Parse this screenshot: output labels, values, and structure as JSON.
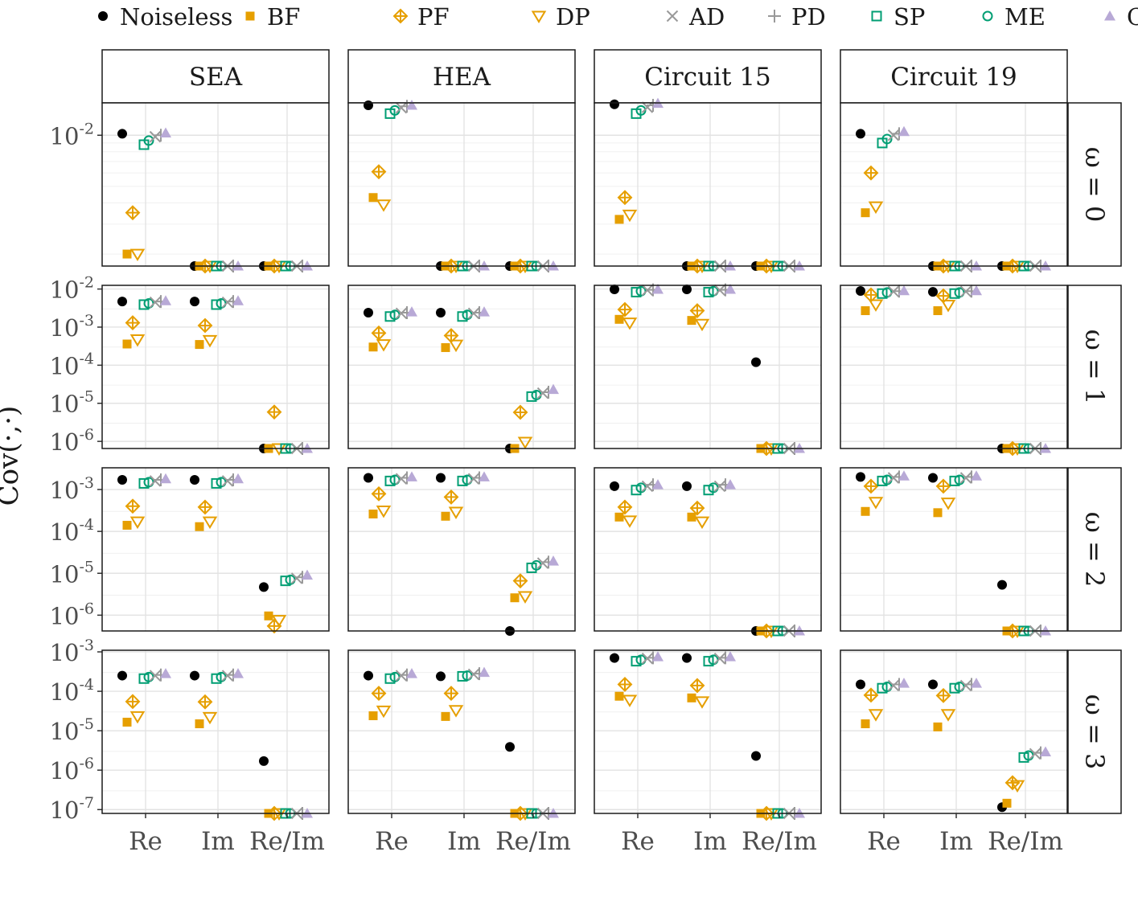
{
  "legend": {
    "placement": "top",
    "items": [
      {
        "name": "Noiseless",
        "shape": "filled-circle",
        "color": "#000000"
      },
      {
        "name": "BF",
        "shape": "filled-square",
        "color": "#E69F00"
      },
      {
        "name": "PF",
        "shape": "crossed-diamond",
        "color": "#E69F00"
      },
      {
        "name": "DP",
        "shape": "open-triangle-down",
        "color": "#E69F00"
      },
      {
        "name": "AD",
        "shape": "x",
        "color": "#999999"
      },
      {
        "name": "PD",
        "shape": "plus",
        "color": "#999999"
      },
      {
        "name": "SP",
        "shape": "open-square",
        "color": "#009E73"
      },
      {
        "name": "ME",
        "shape": "open-circle",
        "color": "#009E73"
      },
      {
        "name": "CGE",
        "shape": "filled-triangle-up",
        "color": "#B8A9D6"
      }
    ]
  },
  "chart_data": {
    "type": "scatter",
    "ylabel": "Cov(·,·)",
    "y_scale": "log",
    "grid": true,
    "columns": [
      "SEA",
      "HEA",
      "Circuit 15",
      "Circuit 19"
    ],
    "rows": [
      "ω = 0",
      "ω = 1",
      "ω = 2",
      "ω = 3"
    ],
    "x_categories": [
      "Re",
      "Im",
      "Re/Im"
    ],
    "series_order": [
      "Noiseless",
      "BF",
      "PF",
      "DP",
      "SP",
      "ME",
      "AD",
      "PD",
      "CGE"
    ],
    "row_axes": [
      {
        "ylim": [
          0.0017,
          0.0155
        ],
        "ticks": [
          {
            "v": 0.01,
            "label": "10-2"
          }
        ],
        "minor": [
          0.002,
          0.003,
          0.004,
          0.005,
          0.006,
          0.007,
          0.008,
          0.009
        ]
      },
      {
        "ylim": [
          6.5e-07,
          0.0125
        ],
        "ticks": [
          {
            "v": 0.01,
            "label": "10-2"
          },
          {
            "v": 0.001,
            "label": "10-3"
          },
          {
            "v": 0.0001,
            "label": "10-4"
          },
          {
            "v": 1e-05,
            "label": "10-5"
          },
          {
            "v": 1e-06,
            "label": "10-6"
          }
        ],
        "minor": [
          3e-06,
          3e-05,
          0.0003,
          0.003
        ]
      },
      {
        "ylim": [
          4.2e-07,
          0.0033
        ],
        "ticks": [
          {
            "v": 0.001,
            "label": "10-3"
          },
          {
            "v": 0.0001,
            "label": "10-4"
          },
          {
            "v": 1e-05,
            "label": "10-5"
          },
          {
            "v": 1e-06,
            "label": "10-6"
          }
        ],
        "minor": [
          3e-06,
          3e-05,
          0.0003,
          0.003
        ]
      },
      {
        "ylim": [
          8e-08,
          0.0011
        ],
        "ticks": [
          {
            "v": 0.001,
            "label": "10-3"
          },
          {
            "v": 0.0001,
            "label": "10-4"
          },
          {
            "v": 1e-05,
            "label": "10-5"
          },
          {
            "v": 1e-06,
            "label": "10-6"
          },
          {
            "v": 1e-07,
            "label": "10-7"
          }
        ],
        "minor": [
          3e-07,
          3e-06,
          3e-05,
          0.0003
        ]
      }
    ],
    "panels": [
      [
        {
          "Re": {
            "Noiseless": 0.0102,
            "BF": 0.002,
            "PF": 0.0035,
            "DP": 0.002,
            "SP": 0.0088,
            "ME": 0.0093,
            "AD": 0.0098,
            "PD": 0.01,
            "CGE": 0.0103
          },
          "Im": {
            "all": 0.0017
          },
          "Re/Im": {
            "all": 0.0017
          }
        },
        {
          "Re": {
            "Noiseless": 0.015,
            "BF": 0.0043,
            "PF": 0.0061,
            "DP": 0.0039,
            "SP": 0.0134,
            "ME": 0.014,
            "AD": 0.0145,
            "PD": 0.0148,
            "CGE": 0.015
          },
          "Im": {
            "all": 0.0017
          },
          "Re/Im": {
            "all": 0.0017
          }
        },
        {
          "Re": {
            "Noiseless": 0.0152,
            "BF": 0.0032,
            "PF": 0.0043,
            "DP": 0.0034,
            "SP": 0.0134,
            "ME": 0.014,
            "AD": 0.0146,
            "PD": 0.015,
            "CGE": 0.0154
          },
          "Im": {
            "all": 0.0017
          },
          "Re/Im": {
            "all": 0.0017
          }
        },
        {
          "Re": {
            "Noiseless": 0.0102,
            "BF": 0.0035,
            "PF": 0.006,
            "DP": 0.0038,
            "SP": 0.009,
            "ME": 0.0095,
            "AD": 0.01,
            "PD": 0.0102,
            "CGE": 0.0105
          },
          "Im": {
            "all": 0.0017
          },
          "Re/Im": {
            "all": 0.0017
          }
        }
      ],
      [
        {
          "Re": {
            "Noiseless": 0.0047,
            "BF": 0.00036,
            "PF": 0.0013,
            "DP": 0.00047,
            "SP": 0.0039,
            "ME": 0.0042,
            "AD": 0.0045,
            "PD": 0.0047,
            "CGE": 0.0049
          },
          "Im": {
            "Noiseless": 0.0047,
            "BF": 0.00035,
            "PF": 0.0011,
            "DP": 0.00045,
            "SP": 0.0039,
            "ME": 0.0042,
            "AD": 0.0045,
            "PD": 0.0047,
            "CGE": 0.0049
          },
          "Re/Im": {
            "Noiseless": 6.5e-07,
            "BF": 6.5e-07,
            "PF": 5.9e-06,
            "DP": 6.5e-07,
            "SP": 6.5e-07,
            "ME": 6.5e-07,
            "AD": 6.5e-07,
            "PD": 6.5e-07,
            "CGE": 6.5e-07
          }
        },
        {
          "Re": {
            "Noiseless": 0.0024,
            "BF": 0.0003,
            "PF": 0.0007,
            "DP": 0.00035,
            "SP": 0.0019,
            "ME": 0.0021,
            "AD": 0.0023,
            "PD": 0.0024,
            "CGE": 0.0025
          },
          "Im": {
            "Noiseless": 0.0024,
            "BF": 0.00029,
            "PF": 0.0006,
            "DP": 0.00034,
            "SP": 0.0019,
            "ME": 0.0021,
            "AD": 0.0023,
            "PD": 0.0024,
            "CGE": 0.0025
          },
          "Re/Im": {
            "Noiseless": 6.5e-07,
            "BF": 6.5e-07,
            "PF": 5.8e-06,
            "DP": 9.6e-07,
            "SP": 1.5e-05,
            "ME": 1.65e-05,
            "AD": 1.85e-05,
            "PD": 1.95e-05,
            "CGE": 2.3e-05
          }
        },
        {
          "Re": {
            "Noiseless": 0.0098,
            "BF": 0.0016,
            "PF": 0.0029,
            "DP": 0.0013,
            "SP": 0.0083,
            "ME": 0.0088,
            "AD": 0.0093,
            "PD": 0.0095,
            "CGE": 0.0098
          },
          "Im": {
            "Noiseless": 0.0098,
            "BF": 0.0015,
            "PF": 0.0027,
            "DP": 0.0012,
            "SP": 0.0083,
            "ME": 0.0088,
            "AD": 0.0093,
            "PD": 0.0095,
            "CGE": 0.0098
          },
          "Re/Im": {
            "Noiseless": 0.00012,
            "BF": 6.5e-07,
            "PF": 6.5e-07,
            "DP": 6.5e-07,
            "SP": 6.5e-07,
            "ME": 6.5e-07,
            "AD": 6.5e-07,
            "PD": 6.5e-07,
            "CGE": 6.5e-07
          }
        },
        {
          "Re": {
            "Noiseless": 0.0089,
            "BF": 0.0027,
            "PF": 0.007,
            "DP": 0.0039,
            "SP": 0.0076,
            "ME": 0.0081,
            "AD": 0.0086,
            "PD": 0.0088,
            "CGE": 0.009
          },
          "Im": {
            "Noiseless": 0.0084,
            "BF": 0.0027,
            "PF": 0.0066,
            "DP": 0.0038,
            "SP": 0.0076,
            "ME": 0.0081,
            "AD": 0.0086,
            "PD": 0.0088,
            "CGE": 0.009
          },
          "Re/Im": {
            "Noiseless": 6.5e-07,
            "BF": 6.5e-07,
            "PF": 6.5e-07,
            "DP": 6.5e-07,
            "SP": 6.5e-07,
            "ME": 6.5e-07,
            "AD": 6.5e-07,
            "PD": 6.5e-07,
            "CGE": 6.5e-07
          }
        }
      ],
      [
        {
          "Re": {
            "Noiseless": 0.0017,
            "BF": 0.00014,
            "PF": 0.0004,
            "DP": 0.00017,
            "SP": 0.0014,
            "ME": 0.0015,
            "AD": 0.0016,
            "PD": 0.0017,
            "CGE": 0.0018
          },
          "Im": {
            "Noiseless": 0.0017,
            "BF": 0.00013,
            "PF": 0.00038,
            "DP": 0.00017,
            "SP": 0.0014,
            "ME": 0.0015,
            "AD": 0.0016,
            "PD": 0.0017,
            "CGE": 0.0018
          },
          "Re/Im": {
            "Noiseless": 4.7e-06,
            "BF": 9.6e-07,
            "PF": 5.5e-07,
            "DP": 7.6e-07,
            "SP": 6.6e-06,
            "ME": 7e-06,
            "AD": 7.6e-06,
            "PD": 8e-06,
            "CGE": 9e-06
          }
        },
        {
          "Re": {
            "Noiseless": 0.0019,
            "BF": 0.00026,
            "PF": 0.00079,
            "DP": 0.00031,
            "SP": 0.0016,
            "ME": 0.0017,
            "AD": 0.0018,
            "PD": 0.0019,
            "CGE": 0.002
          },
          "Im": {
            "Noiseless": 0.0019,
            "BF": 0.00023,
            "PF": 0.00066,
            "DP": 0.00029,
            "SP": 0.0016,
            "ME": 0.0017,
            "AD": 0.0018,
            "PD": 0.0019,
            "CGE": 0.002
          },
          "Re/Im": {
            "Noiseless": 4.2e-07,
            "BF": 2.6e-06,
            "PF": 6.6e-06,
            "DP": 2.8e-06,
            "SP": 1.35e-05,
            "ME": 1.55e-05,
            "AD": 1.75e-05,
            "PD": 1.85e-05,
            "CGE": 1.95e-05
          }
        },
        {
          "Re": {
            "Noiseless": 0.0012,
            "BF": 0.00022,
            "PF": 0.00038,
            "DP": 0.00018,
            "SP": 0.00097,
            "ME": 0.0011,
            "AD": 0.0012,
            "PD": 0.0013,
            "CGE": 0.0013
          },
          "Im": {
            "Noiseless": 0.0012,
            "BF": 0.00022,
            "PF": 0.00036,
            "DP": 0.00017,
            "SP": 0.00097,
            "ME": 0.0011,
            "AD": 0.0012,
            "PD": 0.0013,
            "CGE": 0.0013
          },
          "Re/Im": {
            "Noiseless": 4.2e-07,
            "BF": 4.2e-07,
            "PF": 4.2e-07,
            "DP": 4.2e-07,
            "SP": 4.2e-07,
            "ME": 4.2e-07,
            "AD": 4.2e-07,
            "PD": 4.2e-07,
            "CGE": 4.2e-07
          }
        },
        {
          "Re": {
            "Noiseless": 0.002,
            "BF": 0.0003,
            "PF": 0.0012,
            "DP": 0.0005,
            "SP": 0.0016,
            "ME": 0.0017,
            "AD": 0.0019,
            "PD": 0.002,
            "CGE": 0.0021
          },
          "Im": {
            "Noiseless": 0.0019,
            "BF": 0.00028,
            "PF": 0.0012,
            "DP": 0.00048,
            "SP": 0.0016,
            "ME": 0.0017,
            "AD": 0.0019,
            "PD": 0.002,
            "CGE": 0.0021
          },
          "Re/Im": {
            "Noiseless": 5.3e-06,
            "BF": 4.2e-07,
            "PF": 4.2e-07,
            "DP": 4.2e-07,
            "SP": 4.2e-07,
            "ME": 4.2e-07,
            "AD": 4.2e-07,
            "PD": 4.2e-07,
            "CGE": 4.2e-07
          }
        }
      ],
      [
        {
          "Re": {
            "Noiseless": 0.00025,
            "BF": 1.65e-05,
            "PF": 5.5e-05,
            "DP": 2.3e-05,
            "SP": 0.00021,
            "ME": 0.00023,
            "AD": 0.00025,
            "PD": 0.00026,
            "CGE": 0.00028
          },
          "Im": {
            "Noiseless": 0.00025,
            "BF": 1.5e-05,
            "PF": 5.4e-05,
            "DP": 2.2e-05,
            "SP": 0.00021,
            "ME": 0.00023,
            "AD": 0.00025,
            "PD": 0.00026,
            "CGE": 0.00028
          },
          "Re/Im": {
            "Noiseless": 1.7e-06,
            "BF": 8e-08,
            "PF": 8e-08,
            "DP": 8e-08,
            "SP": 8e-08,
            "ME": 8e-08,
            "AD": 8e-08,
            "PD": 8e-08,
            "CGE": 8e-08
          }
        },
        {
          "Re": {
            "Noiseless": 0.00025,
            "BF": 2.4e-05,
            "PF": 8.9e-05,
            "DP": 3.2e-05,
            "SP": 0.00021,
            "ME": 0.00023,
            "AD": 0.00025,
            "PD": 0.00026,
            "CGE": 0.00028
          },
          "Im": {
            "Noiseless": 0.00024,
            "BF": 2.3e-05,
            "PF": 8.9e-05,
            "DP": 3.3e-05,
            "SP": 0.00024,
            "ME": 0.00025,
            "AD": 0.00027,
            "PD": 0.00028,
            "CGE": 0.0003
          },
          "Re/Im": {
            "Noiseless": 3.9e-06,
            "BF": 8e-08,
            "PF": 8e-08,
            "DP": 8e-08,
            "SP": 8e-08,
            "ME": 8e-08,
            "AD": 8e-08,
            "PD": 8e-08,
            "CGE": 8e-08
          }
        },
        {
          "Re": {
            "Noiseless": 0.0007,
            "BF": 7.5e-05,
            "PF": 0.00015,
            "DP": 6e-05,
            "SP": 0.00058,
            "ME": 0.00063,
            "AD": 0.00068,
            "PD": 0.00071,
            "CGE": 0.00075
          },
          "Im": {
            "Noiseless": 0.0007,
            "BF": 6.8e-05,
            "PF": 0.00014,
            "DP": 5.5e-05,
            "SP": 0.00058,
            "ME": 0.00063,
            "AD": 0.00068,
            "PD": 0.00071,
            "CGE": 0.00075
          },
          "Re/Im": {
            "Noiseless": 2.3e-06,
            "BF": 8e-08,
            "PF": 8e-08,
            "DP": 8e-08,
            "SP": 8e-08,
            "ME": 8e-08,
            "AD": 8e-08,
            "PD": 8e-08,
            "CGE": 8e-08
          }
        },
        {
          "Re": {
            "Noiseless": 0.00015,
            "BF": 1.5e-05,
            "PF": 8e-05,
            "DP": 2.6e-05,
            "SP": 0.00012,
            "ME": 0.00013,
            "AD": 0.00014,
            "PD": 0.00015,
            "CGE": 0.00016
          },
          "Im": {
            "Noiseless": 0.00015,
            "BF": 1.25e-05,
            "PF": 7.8e-05,
            "DP": 2.6e-05,
            "SP": 0.00012,
            "ME": 0.00013,
            "AD": 0.00014,
            "PD": 0.00015,
            "CGE": 0.00016
          },
          "Re/Im": {
            "Noiseless": 1.15e-07,
            "BF": 1.45e-07,
            "PF": 4.8e-07,
            "DP": 4.1e-07,
            "SP": 2.1e-06,
            "ME": 2.35e-06,
            "AD": 2.6e-06,
            "PD": 2.75e-06,
            "CGE": 2.9e-06
          }
        }
      ]
    ]
  }
}
